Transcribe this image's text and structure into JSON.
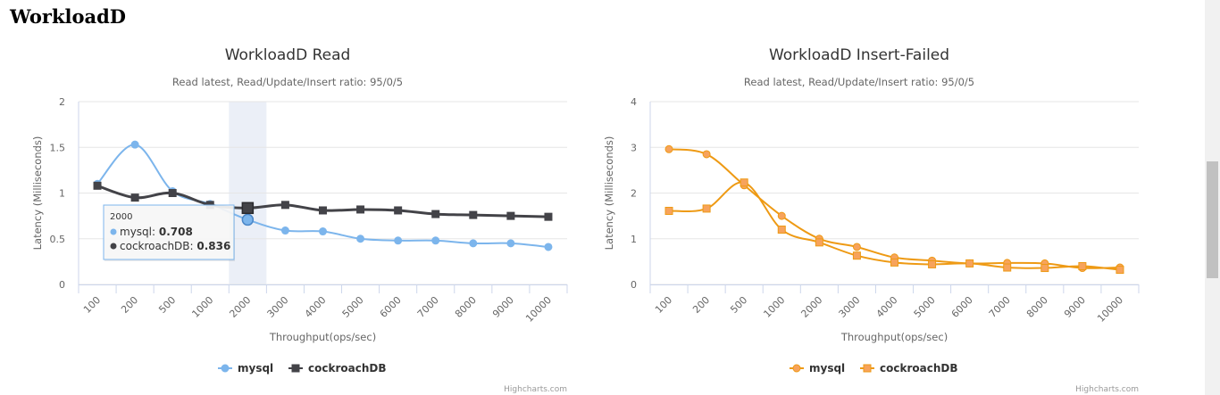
{
  "page": {
    "title": "WorkloadD"
  },
  "credits": "Highcharts.com",
  "scrollbar": {},
  "chart_data": [
    {
      "type": "line",
      "title": "WorkloadD Read",
      "subtitle": "Read latest, Read/Update/Insert ratio: 95/0/5",
      "xlabel": "Throughput(ops/sec)",
      "ylabel": "Latency (Milliseconds)",
      "categories": [
        "100",
        "200",
        "500",
        "1000",
        "2000",
        "3000",
        "4000",
        "5000",
        "6000",
        "7000",
        "8000",
        "9000",
        "10000"
      ],
      "ylim": [
        0,
        2
      ],
      "yticks": [
        "0",
        "0.5",
        "1",
        "1.5",
        "2"
      ],
      "grid": true,
      "legend_position": "bottom-center",
      "series": [
        {
          "name": "mysql",
          "color": "#7cb5ec",
          "marker": "circle",
          "values": [
            1.1,
            1.53,
            1.02,
            0.88,
            0.708,
            0.59,
            0.58,
            0.5,
            0.48,
            0.48,
            0.45,
            0.45,
            0.41
          ]
        },
        {
          "name": "cockroachDB",
          "color": "#434348",
          "marker": "square",
          "values": [
            1.08,
            0.95,
            1.0,
            0.87,
            0.836,
            0.87,
            0.81,
            0.82,
            0.81,
            0.77,
            0.76,
            0.75,
            0.74
          ]
        }
      ],
      "tooltip": {
        "category": "2000",
        "rows": [
          {
            "name": "mysql",
            "value": "0.708",
            "color": "#7cb5ec"
          },
          {
            "name": "cockroachDB",
            "value": "0.836",
            "color": "#434348"
          }
        ]
      }
    },
    {
      "type": "line",
      "title": "WorkloadD Insert-Failed",
      "subtitle": "Read latest, Read/Update/Insert ratio: 95/0/5",
      "xlabel": "Throughput(ops/sec)",
      "ylabel": "Latency (Milliseconds)",
      "categories": [
        "100",
        "200",
        "500",
        "1000",
        "2000",
        "3000",
        "4000",
        "5000",
        "6000",
        "7000",
        "8000",
        "9000",
        "10000"
      ],
      "ylim": [
        0,
        4
      ],
      "yticks": [
        "0",
        "1",
        "2",
        "3",
        "4"
      ],
      "grid": true,
      "legend_position": "bottom-center",
      "series": [
        {
          "name": "mysql",
          "color": "#f7a35c",
          "stroke": "#ee9a14",
          "marker": "circle",
          "values": [
            2.96,
            2.85,
            2.17,
            1.5,
            1.0,
            0.82,
            0.59,
            0.52,
            0.46,
            0.47,
            0.46,
            0.36,
            0.37
          ]
        },
        {
          "name": "cockroachDB",
          "color": "#f7a35c",
          "stroke": "#ee9a14",
          "marker": "square",
          "values": [
            1.61,
            1.66,
            2.23,
            1.2,
            0.92,
            0.63,
            0.48,
            0.44,
            0.46,
            0.37,
            0.36,
            0.4,
            0.32
          ]
        }
      ]
    }
  ]
}
